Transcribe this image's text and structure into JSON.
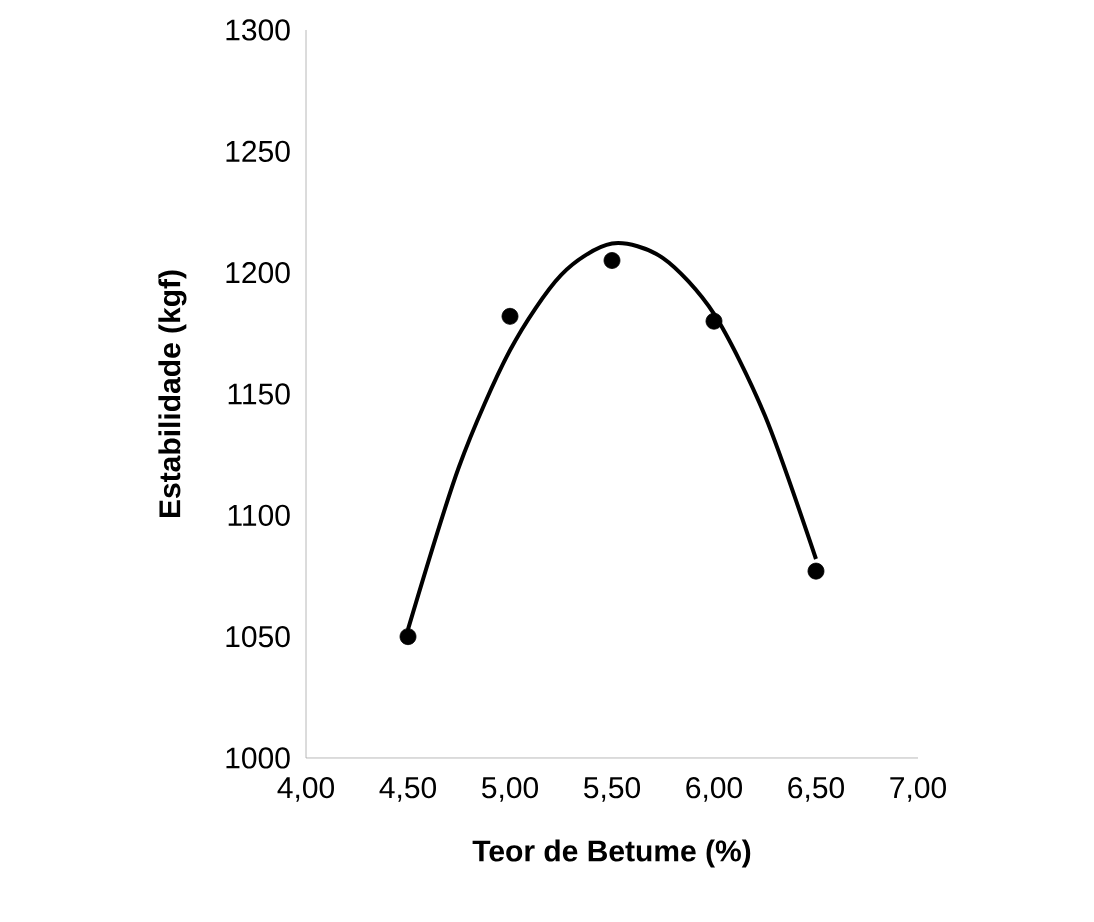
{
  "chart_data": {
    "type": "scatter",
    "xlabel": "Teor de Betume (%)",
    "ylabel": "Estabilidade (kgf)",
    "xlim": [
      4,
      7
    ],
    "xticks": [
      {
        "value": 4,
        "label": "4,00"
      },
      {
        "value": 4.5,
        "label": "4,50"
      },
      {
        "value": 5,
        "label": "5,00"
      },
      {
        "value": 5.5,
        "label": "5,50"
      },
      {
        "value": 6,
        "label": "6,00"
      },
      {
        "value": 6.5,
        "label": "6,50"
      },
      {
        "value": 7,
        "label": "7,00"
      }
    ],
    "ylim": [
      1000,
      1300
    ],
    "yticks": [
      1000,
      1050,
      1100,
      1150,
      1200,
      1250,
      1300
    ],
    "grid": false,
    "series": [
      {
        "marker": "circle",
        "color": "#000000",
        "x": [
          4.5,
          5.0,
          5.5,
          6.0,
          6.5
        ],
        "values": [
          1050,
          1182,
          1205,
          1180,
          1077
        ]
      },
      {
        "type": "line",
        "marker": "none",
        "line_style": "solid",
        "color": "#000000",
        "x": [
          4.5,
          4.75,
          5.0,
          5.25,
          5.5,
          5.75,
          6.0,
          6.25,
          6.5
        ],
        "values": [
          1053,
          1120,
          1168,
          1199,
          1212,
          1206,
          1183,
          1141,
          1082
        ]
      }
    ]
  }
}
